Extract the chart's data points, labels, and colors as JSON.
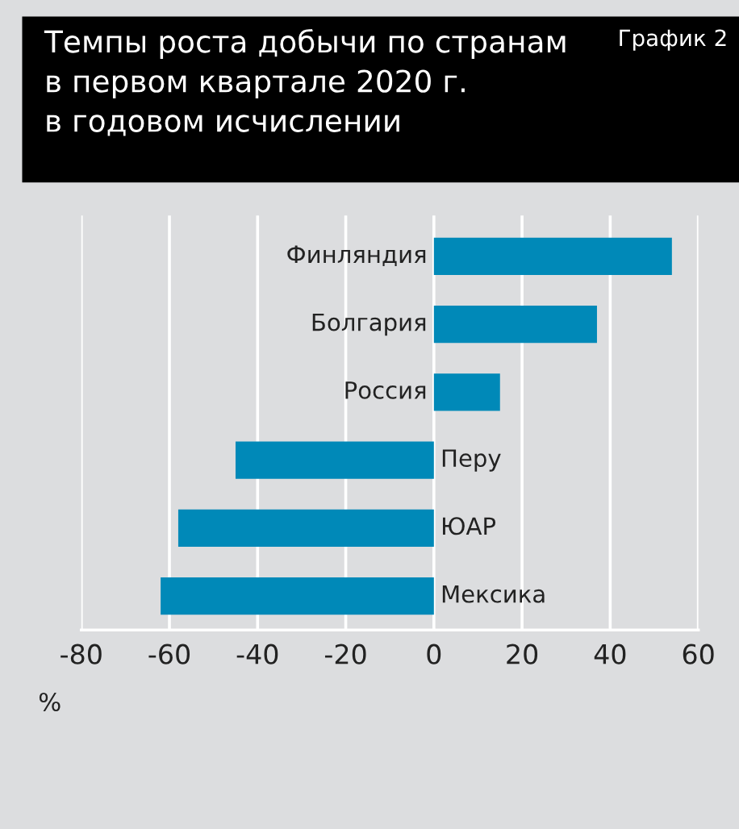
{
  "chart_data": {
    "type": "bar",
    "orientation": "horizontal",
    "title": "Темпы роста добычи по странам\nв первом квартале 2020 г.\nв годовом исчислении",
    "subtitle": "График 2",
    "xlabel": "%",
    "categories": [
      "Финляндия",
      "Болгария",
      "Россия",
      "Перу",
      "ЮАР",
      "Мексика"
    ],
    "values": [
      54,
      37,
      15,
      -45,
      -58,
      -62
    ],
    "color": "#0089b8",
    "xlim": [
      -80,
      60
    ],
    "xticks": [
      -80,
      -60,
      -40,
      -20,
      0,
      20,
      40,
      60
    ],
    "grid": "x"
  }
}
